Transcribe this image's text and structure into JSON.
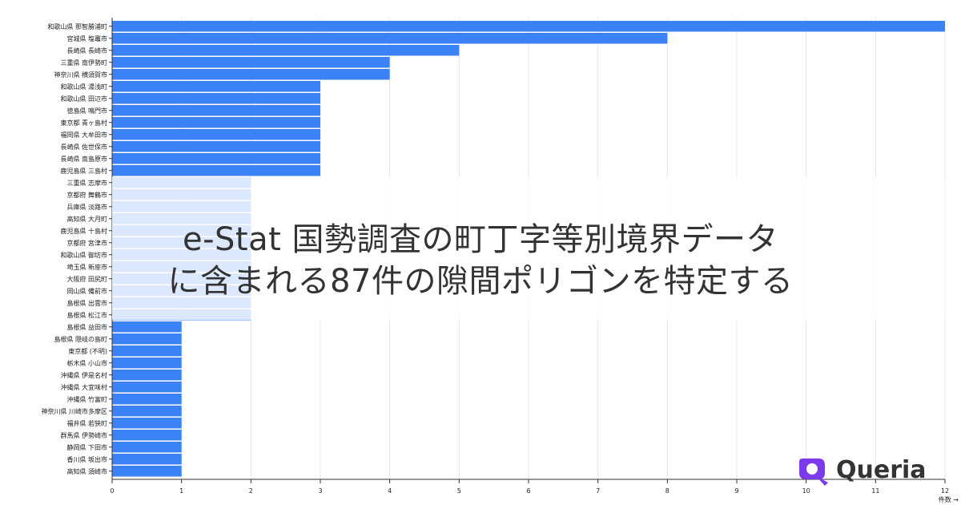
{
  "chart_data": {
    "type": "bar",
    "orientation": "horizontal",
    "categories": [
      "和歌山県 那智勝浦町",
      "宮城県 塩竈市",
      "長崎県 長崎市",
      "三重県 南伊勢町",
      "神奈川県 横須賀市",
      "和歌山県 湯浅町",
      "和歌山県 田辺市",
      "徳島県 鳴門市",
      "東京都 青ヶ島村",
      "福岡県 大牟田市",
      "長崎県 佐世保市",
      "長崎県 南島原市",
      "鹿児島県 三島村",
      "三重県 志摩市",
      "京都府 舞鶴市",
      "兵庫県 淡路市",
      "高知県 大月町",
      "鹿児島県 十島村",
      "京都府 宮津市",
      "和歌山県 御坊市",
      "埼玉県 新座市",
      "大阪府 田尻町",
      "岡山県 備前市",
      "島根県 出雲市",
      "島根県 松江市",
      "島根県 益田市",
      "島根県 隠岐の島町",
      "東京都 (不明)",
      "栃木県 小山市",
      "沖縄県 伊是名村",
      "沖縄県 大宜味村",
      "沖縄県 竹富町",
      "神奈川県 川崎市多摩区",
      "福井県 若狭町",
      "群馬県 伊勢崎市",
      "静岡県 下田市",
      "香川県 坂出市",
      "高知県 須崎市"
    ],
    "values": [
      12,
      8,
      5,
      4,
      4,
      3,
      3,
      3,
      3,
      3,
      3,
      3,
      3,
      2,
      2,
      2,
      2,
      2,
      2,
      2,
      2,
      2,
      2,
      2,
      2,
      1,
      1,
      1,
      1,
      1,
      1,
      1,
      1,
      1,
      1,
      1,
      1,
      1
    ],
    "xlim": [
      0,
      12
    ],
    "xticks": [
      0,
      1,
      2,
      3,
      4,
      5,
      6,
      7,
      8,
      9,
      10,
      11,
      12
    ],
    "xlabel": "件数 →",
    "grid": true,
    "bar_color": "#3b82f6"
  },
  "overlay": {
    "line1": "e-Stat 国勢調査の町丁字等別境界データ",
    "line2": "に含まれる87件の隙間ポリゴンを特定する"
  },
  "brand": {
    "name": "Queria",
    "icon": "queria-logo-icon",
    "icon_color": "#7c3aed"
  }
}
